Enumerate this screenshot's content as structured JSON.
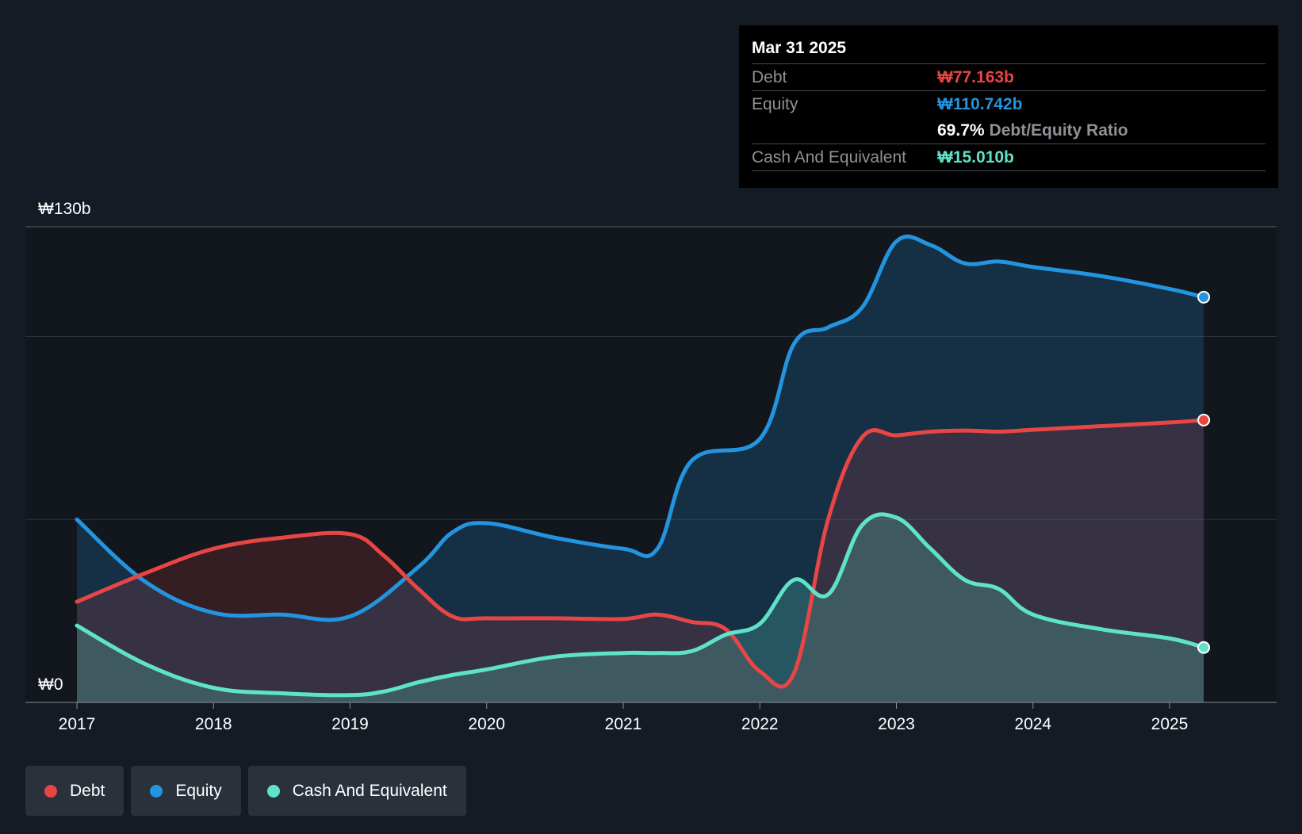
{
  "chart_data": {
    "type": "area",
    "x_ticks": [
      "2017",
      "2018",
      "2019",
      "2020",
      "2021",
      "2022",
      "2023",
      "2024",
      "2025"
    ],
    "y_axis": {
      "top_label": "₩130b",
      "bottom_label": "₩0",
      "ylim": [
        0,
        130
      ]
    },
    "grid": true,
    "series": [
      {
        "name": "Debt",
        "color": "#e84545",
        "points": [
          [
            2017.0,
            27.5
          ],
          [
            2017.5,
            35.3
          ],
          [
            2018.0,
            42.0
          ],
          [
            2018.5,
            45.0
          ],
          [
            2019.0,
            46.0
          ],
          [
            2019.25,
            40.0
          ],
          [
            2019.5,
            31.0
          ],
          [
            2019.75,
            23.5
          ],
          [
            2020.0,
            23.0
          ],
          [
            2020.5,
            23.0
          ],
          [
            2021.0,
            22.8
          ],
          [
            2021.25,
            24.0
          ],
          [
            2021.5,
            22.0
          ],
          [
            2021.75,
            20.0
          ],
          [
            2022.0,
            8.5
          ],
          [
            2022.25,
            8.0
          ],
          [
            2022.5,
            50.0
          ],
          [
            2022.75,
            72.5
          ],
          [
            2023.0,
            73.0
          ],
          [
            2023.25,
            74.0
          ],
          [
            2023.5,
            74.3
          ],
          [
            2023.75,
            74.0
          ],
          [
            2024.0,
            74.5
          ],
          [
            2024.5,
            75.5
          ],
          [
            2025.0,
            76.5
          ],
          [
            2025.25,
            77.163
          ]
        ]
      },
      {
        "name": "Equity",
        "color": "#2394df",
        "points": [
          [
            2017.0,
            50.0
          ],
          [
            2017.5,
            33.0
          ],
          [
            2018.0,
            24.5
          ],
          [
            2018.5,
            24.0
          ],
          [
            2019.0,
            23.5
          ],
          [
            2019.5,
            37.0
          ],
          [
            2019.75,
            46.5
          ],
          [
            2020.0,
            49.0
          ],
          [
            2020.5,
            45.0
          ],
          [
            2021.0,
            42.0
          ],
          [
            2021.25,
            42.0
          ],
          [
            2021.5,
            66.0
          ],
          [
            2022.0,
            72.0
          ],
          [
            2022.25,
            98.0
          ],
          [
            2022.5,
            102.5
          ],
          [
            2022.75,
            108.0
          ],
          [
            2023.0,
            126.0
          ],
          [
            2023.25,
            125.0
          ],
          [
            2023.5,
            120.0
          ],
          [
            2023.75,
            120.5
          ],
          [
            2024.0,
            119.0
          ],
          [
            2024.5,
            116.5
          ],
          [
            2025.0,
            113.0
          ],
          [
            2025.25,
            110.742
          ]
        ]
      },
      {
        "name": "Cash And Equivalent",
        "color": "#5fe3c8",
        "points": [
          [
            2017.0,
            21.0
          ],
          [
            2017.5,
            10.5
          ],
          [
            2018.0,
            4.0
          ],
          [
            2018.5,
            2.5
          ],
          [
            2019.0,
            2.0
          ],
          [
            2019.25,
            3.0
          ],
          [
            2019.5,
            5.5
          ],
          [
            2019.75,
            7.5
          ],
          [
            2020.0,
            9.0
          ],
          [
            2020.5,
            12.5
          ],
          [
            2021.0,
            13.5
          ],
          [
            2021.25,
            13.5
          ],
          [
            2021.5,
            14.0
          ],
          [
            2021.75,
            18.5
          ],
          [
            2022.0,
            21.5
          ],
          [
            2022.25,
            33.5
          ],
          [
            2022.5,
            29.5
          ],
          [
            2022.75,
            48.5
          ],
          [
            2023.0,
            50.5
          ],
          [
            2023.25,
            42.0
          ],
          [
            2023.5,
            33.5
          ],
          [
            2023.75,
            31.0
          ],
          [
            2024.0,
            24.0
          ],
          [
            2024.5,
            20.0
          ],
          [
            2025.0,
            17.5
          ],
          [
            2025.25,
            15.01
          ]
        ]
      }
    ]
  },
  "tooltip": {
    "date": "Mar 31 2025",
    "debt_label": "Debt",
    "debt_value": "₩77.163b",
    "equity_label": "Equity",
    "equity_value": "₩110.742b",
    "ratio_value": "69.7%",
    "ratio_label": "Debt/Equity Ratio",
    "cash_label": "Cash And Equivalent",
    "cash_value": "₩15.010b"
  },
  "legend": [
    {
      "label": "Debt",
      "color": "#e84545"
    },
    {
      "label": "Equity",
      "color": "#2394df"
    },
    {
      "label": "Cash And Equivalent",
      "color": "#5fe3c8"
    }
  ]
}
